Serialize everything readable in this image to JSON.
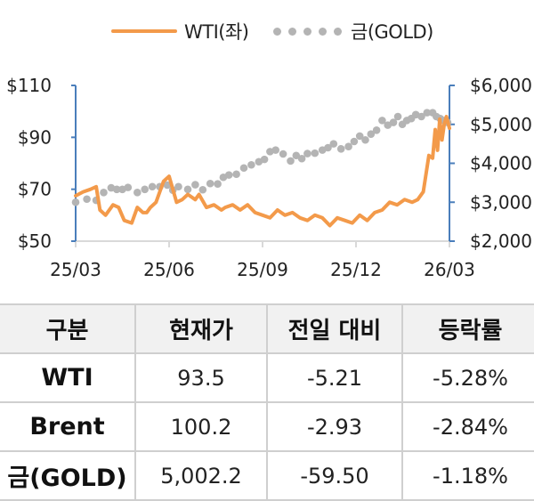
{
  "legend": {
    "wti_label": "WTI(좌)",
    "gold_label": "금(GOLD)"
  },
  "colors": {
    "wti": "#f39a4a",
    "gold": "#b4b4b4",
    "axis": "#4a7ebb",
    "baseline": "#d9d9d9"
  },
  "chart_data": {
    "type": "line",
    "title": "",
    "xlabel": "",
    "ylabel": "",
    "x_tick_labels": [
      "25/03",
      "25/06",
      "25/09",
      "25/12",
      "26/03"
    ],
    "left_axis": {
      "label": "WTI",
      "ticks": [
        "$110",
        "$90",
        "$70",
        "$50"
      ],
      "ylim": [
        50,
        110
      ]
    },
    "right_axis": {
      "label": "금(GOLD)",
      "ticks": [
        "$6,000",
        "$5,000",
        "$4,000",
        "$3,000",
        "$2,000"
      ],
      "ylim": [
        2000,
        6000
      ]
    },
    "grid": false,
    "legend_position": "top",
    "series": [
      {
        "name": "WTI(좌)",
        "axis": "left",
        "style": "line",
        "x": [
          0.0,
          0.02,
          0.04,
          0.055,
          0.065,
          0.08,
          0.1,
          0.115,
          0.13,
          0.15,
          0.165,
          0.18,
          0.19,
          0.2,
          0.215,
          0.235,
          0.25,
          0.27,
          0.285,
          0.3,
          0.31,
          0.32,
          0.33,
          0.35,
          0.37,
          0.39,
          0.4,
          0.42,
          0.44,
          0.46,
          0.48,
          0.5,
          0.52,
          0.54,
          0.56,
          0.58,
          0.6,
          0.62,
          0.64,
          0.66,
          0.68,
          0.7,
          0.72,
          0.74,
          0.76,
          0.78,
          0.8,
          0.82,
          0.84,
          0.86,
          0.88,
          0.9,
          0.915,
          0.93,
          0.945,
          0.955,
          0.962,
          0.968,
          0.974,
          0.98,
          0.986,
          0.992,
          1.0
        ],
        "values": [
          67.5,
          69,
          70,
          71,
          62,
          60,
          64,
          63,
          58,
          57,
          63,
          61,
          61,
          63,
          65,
          73,
          75,
          65,
          66,
          68,
          67,
          66,
          68,
          63,
          64,
          62,
          63,
          64,
          62,
          64,
          61,
          60,
          59,
          62,
          60,
          61,
          59,
          58,
          60,
          59,
          56,
          59,
          58,
          57,
          60,
          58,
          61,
          62,
          65,
          64,
          66,
          65,
          66,
          69,
          83,
          82,
          93,
          85,
          97,
          89,
          95,
          98,
          93.5
        ]
      },
      {
        "name": "금(GOLD)",
        "axis": "right",
        "style": "dots",
        "x": [
          0.0,
          0.03,
          0.055,
          0.075,
          0.095,
          0.11,
          0.125,
          0.14,
          0.165,
          0.185,
          0.205,
          0.225,
          0.245,
          0.26,
          0.275,
          0.3,
          0.32,
          0.34,
          0.36,
          0.38,
          0.395,
          0.41,
          0.43,
          0.45,
          0.47,
          0.49,
          0.505,
          0.52,
          0.535,
          0.555,
          0.575,
          0.59,
          0.605,
          0.62,
          0.64,
          0.66,
          0.675,
          0.69,
          0.71,
          0.73,
          0.745,
          0.76,
          0.775,
          0.79,
          0.805,
          0.82,
          0.835,
          0.85,
          0.862,
          0.874,
          0.886,
          0.898,
          0.91,
          0.925,
          0.94,
          0.955,
          0.965,
          0.975,
          0.985,
          0.995
        ],
        "values": [
          3000,
          3080,
          3050,
          3250,
          3370,
          3330,
          3330,
          3380,
          3250,
          3330,
          3400,
          3400,
          3440,
          3310,
          3400,
          3330,
          3450,
          3320,
          3480,
          3470,
          3640,
          3700,
          3720,
          3880,
          3960,
          4040,
          4100,
          4300,
          4340,
          4240,
          4060,
          4200,
          4120,
          4250,
          4260,
          4340,
          4400,
          4500,
          4370,
          4430,
          4560,
          4700,
          4600,
          4750,
          4850,
          5100,
          4980,
          5050,
          5200,
          5000,
          5100,
          5150,
          5250,
          5200,
          5300,
          5300,
          5200,
          5150,
          5100,
          5050
        ]
      }
    ]
  },
  "table": {
    "headers": [
      "구분",
      "현재가",
      "전일 대비",
      "등락률"
    ],
    "rows": [
      {
        "name": "WTI",
        "price": "93.5",
        "change": "-5.21",
        "pct": "-5.28%"
      },
      {
        "name": "Brent",
        "price": "100.2",
        "change": "-2.93",
        "pct": "-2.84%"
      },
      {
        "name": "금(GOLD)",
        "price": "5,002.2",
        "change": "-59.50",
        "pct": "-1.18%"
      }
    ]
  }
}
